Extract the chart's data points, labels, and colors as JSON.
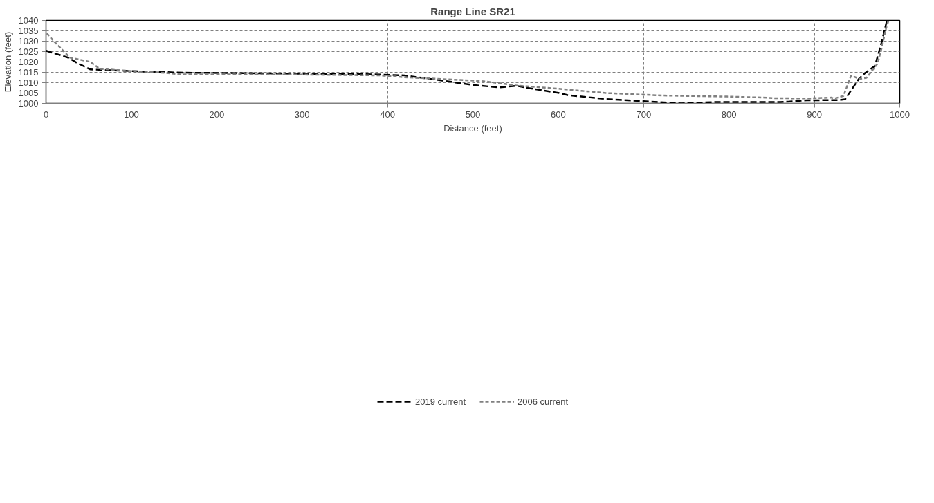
{
  "chart_data": {
    "type": "line",
    "title": "Range Line SR21",
    "xlabel": "Distance (feet)",
    "ylabel": "Elevation (feet)",
    "xlim": [
      0,
      1000
    ],
    "xticks": [
      0,
      100,
      200,
      300,
      400,
      500,
      600,
      700,
      800,
      900,
      1000
    ],
    "ylim": [
      1000,
      1040
    ],
    "yticks": [
      1000,
      1005,
      1010,
      1015,
      1020,
      1025,
      1030,
      1035,
      1040
    ],
    "grid": true,
    "legend": "bottom",
    "line_style": "dashed",
    "marker": "none",
    "series": [
      {
        "name": "2019 current",
        "color": "#000000",
        "x": [
          0,
          26,
          36,
          52,
          100,
          162,
          200,
          300,
          343,
          384,
          420,
          459,
          500,
          531,
          551,
          565,
          600,
          611,
          656,
          700,
          744,
          786,
          860,
          871,
          891,
          929,
          936,
          952,
          959,
          971,
          979,
          985
        ],
        "values": [
          1025.4,
          1022.1,
          1019.6,
          1016.4,
          1015.6,
          1014.8,
          1014.7,
          1014.3,
          1014.2,
          1014,
          1013.5,
          1011.3,
          1008.9,
          1007.7,
          1008.5,
          1007.4,
          1005.1,
          1004,
          1002.1,
          1001.1,
          1000,
          1000.7,
          1000.7,
          1000.9,
          1001.5,
          1001.6,
          1002,
          1011.8,
          1014.5,
          1018.2,
          1029.8,
          1040
        ]
      },
      {
        "name": "2006 current",
        "color": "#808080",
        "x": [
          1,
          9,
          28,
          34,
          52,
          63,
          100,
          128,
          159,
          200,
          300,
          390,
          420,
          445,
          500,
          515,
          552,
          600,
          656,
          700,
          723,
          798,
          840,
          855,
          892,
          920,
          923,
          934,
          943,
          953,
          961,
          974,
          979,
          984,
          987
        ],
        "values": [
          1033.8,
          1030.1,
          1022.1,
          1021.6,
          1020,
          1016.7,
          1015.6,
          1015.1,
          1014,
          1014,
          1013.9,
          1013.5,
          1012.6,
          1012.1,
          1011,
          1010.6,
          1008.6,
          1007.1,
          1005,
          1004.2,
          1003.8,
          1003.3,
          1002.8,
          1002.5,
          1002.4,
          1002.8,
          1002.3,
          1003.6,
          1013.4,
          1011.8,
          1012.3,
          1019.2,
          1027,
          1036.3,
          1040
        ]
      }
    ]
  }
}
